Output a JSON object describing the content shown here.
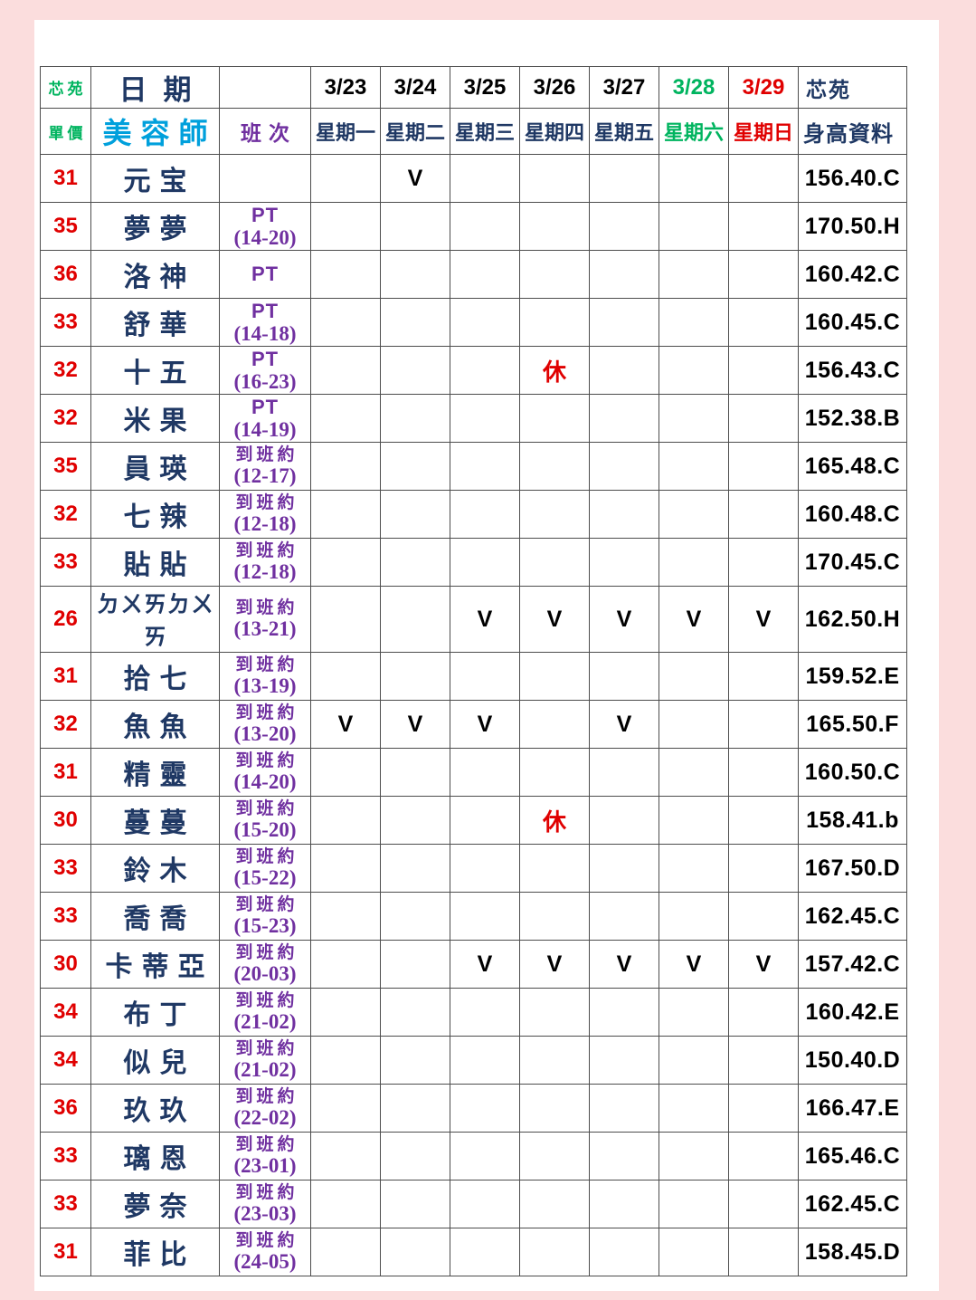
{
  "colors": {
    "black": "#000000",
    "red": "#e00000",
    "green": "#00b45f",
    "navy": "#1f3864",
    "cyan": "#00a0dc",
    "purple": "#7030a0",
    "page_bg": "#fbdddd",
    "panel_bg": "#ffffff"
  },
  "header": {
    "site_label_top_left": "芯苑",
    "price_label": "單價",
    "date_label": "日期",
    "staff_label": "美容師",
    "shift_label": "班次",
    "site_label_top_right": "芯苑",
    "height_label": "身高資料",
    "dates": [
      {
        "date": "3/23",
        "weekday": "星期一",
        "color": "black"
      },
      {
        "date": "3/24",
        "weekday": "星期二",
        "color": "black"
      },
      {
        "date": "3/25",
        "weekday": "星期三",
        "color": "black"
      },
      {
        "date": "3/26",
        "weekday": "星期四",
        "color": "black"
      },
      {
        "date": "3/27",
        "weekday": "星期五",
        "color": "black"
      },
      {
        "date": "3/28",
        "weekday": "星期六",
        "color": "green"
      },
      {
        "date": "3/29",
        "weekday": "星期日",
        "color": "red"
      }
    ]
  },
  "rows": [
    {
      "price": "31",
      "name": "元宝",
      "shift": "",
      "shift_time": "",
      "marks": [
        "",
        "V",
        "",
        "",
        "",
        "",
        ""
      ],
      "height": "156.40.C"
    },
    {
      "price": "35",
      "name": "夢夢",
      "shift": "PT",
      "shift_time": "(14-20)",
      "marks": [
        "",
        "",
        "",
        "",
        "",
        "",
        ""
      ],
      "height": "170.50.H"
    },
    {
      "price": "36",
      "name": "洛神",
      "shift": "PT",
      "shift_time": "",
      "marks": [
        "",
        "",
        "",
        "",
        "",
        "",
        ""
      ],
      "height": "160.42.C"
    },
    {
      "price": "33",
      "name": "舒華",
      "shift": "PT",
      "shift_time": "(14-18)",
      "marks": [
        "",
        "",
        "",
        "",
        "",
        "",
        ""
      ],
      "height": "160.45.C"
    },
    {
      "price": "32",
      "name": "十五",
      "shift": "PT",
      "shift_time": "(16-23)",
      "marks": [
        "",
        "",
        "",
        "休",
        "",
        "",
        ""
      ],
      "height": "156.43.C"
    },
    {
      "price": "32",
      "name": "米果",
      "shift": "PT",
      "shift_time": "(14-19)",
      "marks": [
        "",
        "",
        "",
        "",
        "",
        "",
        ""
      ],
      "height": "152.38.B"
    },
    {
      "price": "35",
      "name": "員瑛",
      "shift": "到班約",
      "shift_time": "(12-17)",
      "marks": [
        "",
        "",
        "",
        "",
        "",
        "",
        ""
      ],
      "height": "165.48.C"
    },
    {
      "price": "32",
      "name": "七辣",
      "shift": "到班約",
      "shift_time": "(12-18)",
      "marks": [
        "",
        "",
        "",
        "",
        "",
        "",
        ""
      ],
      "height": "160.48.C"
    },
    {
      "price": "33",
      "name": "貼貼",
      "shift": "到班約",
      "shift_time": "(12-18)",
      "marks": [
        "",
        "",
        "",
        "",
        "",
        "",
        ""
      ],
      "height": "170.45.C"
    },
    {
      "price": "26",
      "name": "ㄉㄨㄞㄉㄨㄞ",
      "shift": "到班約",
      "shift_time": "(13-21)",
      "marks": [
        "",
        "",
        "V",
        "V",
        "V",
        "V",
        "V"
      ],
      "height": "162.50.H"
    },
    {
      "price": "31",
      "name": "拾七",
      "shift": "到班約",
      "shift_time": "(13-19)",
      "marks": [
        "",
        "",
        "",
        "",
        "",
        "",
        ""
      ],
      "height": "159.52.E"
    },
    {
      "price": "32",
      "name": "魚魚",
      "shift": "到班約",
      "shift_time": "(13-20)",
      "marks": [
        "V",
        "V",
        "V",
        "",
        "V",
        "",
        ""
      ],
      "height": "165.50.F"
    },
    {
      "price": "31",
      "name": "精靈",
      "shift": "到班約",
      "shift_time": "(14-20)",
      "marks": [
        "",
        "",
        "",
        "",
        "",
        "",
        ""
      ],
      "height": "160.50.C"
    },
    {
      "price": "30",
      "name": "蔓蔓",
      "shift": "到班約",
      "shift_time": "(15-20)",
      "marks": [
        "",
        "",
        "",
        "休",
        "",
        "",
        ""
      ],
      "height": "158.41.b"
    },
    {
      "price": "33",
      "name": "鈴木",
      "shift": "到班約",
      "shift_time": "(15-22)",
      "marks": [
        "",
        "",
        "",
        "",
        "",
        "",
        ""
      ],
      "height": "167.50.D"
    },
    {
      "price": "33",
      "name": "喬喬",
      "shift": "到班約",
      "shift_time": "(15-23)",
      "marks": [
        "",
        "",
        "",
        "",
        "",
        "",
        ""
      ],
      "height": "162.45.C"
    },
    {
      "price": "30",
      "name": "卡蒂亞",
      "shift": "到班約",
      "shift_time": "(20-03)",
      "marks": [
        "",
        "",
        "V",
        "V",
        "V",
        "V",
        "V"
      ],
      "height": "157.42.C"
    },
    {
      "price": "34",
      "name": "布丁",
      "shift": "到班約",
      "shift_time": "(21-02)",
      "marks": [
        "",
        "",
        "",
        "",
        "",
        "",
        ""
      ],
      "height": "160.42.E"
    },
    {
      "price": "34",
      "name": "似兒",
      "shift": "到班約",
      "shift_time": "(21-02)",
      "marks": [
        "",
        "",
        "",
        "",
        "",
        "",
        ""
      ],
      "height": "150.40.D"
    },
    {
      "price": "36",
      "name": "玖玖",
      "shift": "到班約",
      "shift_time": "(22-02)",
      "marks": [
        "",
        "",
        "",
        "",
        "",
        "",
        ""
      ],
      "height": "166.47.E"
    },
    {
      "price": "33",
      "name": "璃恩",
      "shift": "到班約",
      "shift_time": "(23-01)",
      "marks": [
        "",
        "",
        "",
        "",
        "",
        "",
        ""
      ],
      "height": "165.46.C"
    },
    {
      "price": "33",
      "name": "夢奈",
      "shift": "到班約",
      "shift_time": "(23-03)",
      "marks": [
        "",
        "",
        "",
        "",
        "",
        "",
        ""
      ],
      "height": "162.45.C"
    },
    {
      "price": "31",
      "name": "菲比",
      "shift": "到班約",
      "shift_time": "(24-05)",
      "marks": [
        "",
        "",
        "",
        "",
        "",
        "",
        ""
      ],
      "height": "158.45.D"
    }
  ]
}
